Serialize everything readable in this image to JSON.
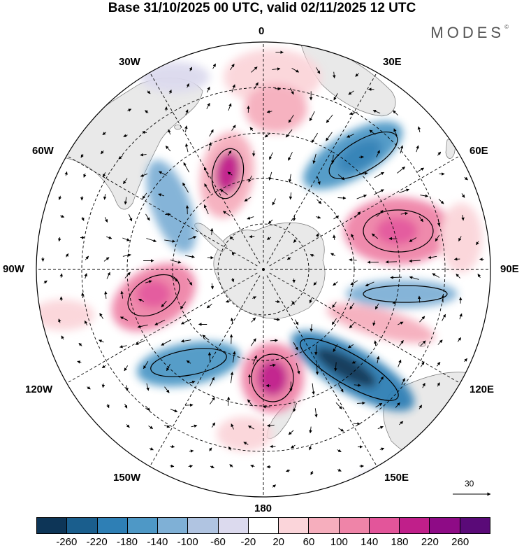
{
  "title": "Base 31/10/2025 00 UTC, valid 02/11/2025 12 UTC",
  "brand": {
    "name": "MODES",
    "mark": "©"
  },
  "longitude_labels": [
    "0",
    "30E",
    "60E",
    "90E",
    "120E",
    "150E",
    "180",
    "150W",
    "120W",
    "90W",
    "60W",
    "30W"
  ],
  "reference_vector": {
    "value": "30"
  },
  "colorbar": {
    "ticks": [
      "-260",
      "-220",
      "-180",
      "-140",
      "-100",
      "-60",
      "-20",
      "20",
      "60",
      "100",
      "140",
      "180",
      "220",
      "260"
    ],
    "colors": [
      "#0d3557",
      "#1a5e8d",
      "#2e7fb5",
      "#4e98c6",
      "#7fb0d6",
      "#b0c4e1",
      "#dcdaee",
      "#ffffff",
      "#fbd5da",
      "#f6aebd",
      "#ef84a8",
      "#e3559a",
      "#c01f8a",
      "#8e0b86",
      "#5a0a78"
    ]
  },
  "colors": {
    "land": "#e9e9e9",
    "coast": "#777777",
    "grid": "#000000"
  }
}
